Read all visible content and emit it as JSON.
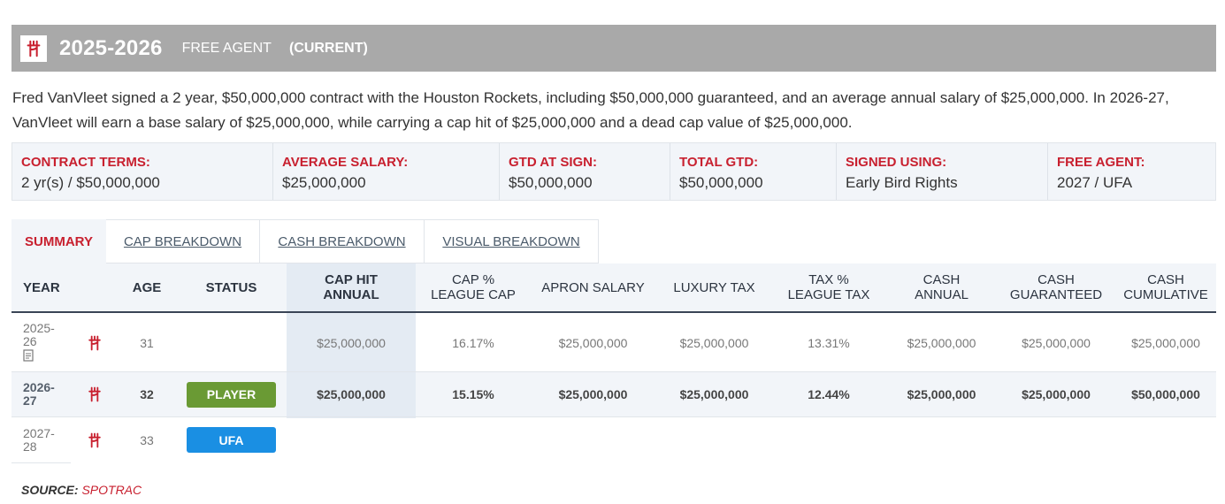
{
  "header": {
    "season": "2025-2026",
    "status": "FREE AGENT",
    "current": "(CURRENT)"
  },
  "description": "Fred VanVleet signed a 2 year, $50,000,000 contract with the Houston Rockets, including $50,000,000 guaranteed, and an average annual salary of $25,000,000. In 2026-27, VanVleet will earn a base salary of $25,000,000, while carrying a cap hit of $25,000,000 and a dead cap value of $25,000,000.",
  "terms": [
    {
      "label": "CONTRACT TERMS:",
      "value": "2 yr(s) / $50,000,000"
    },
    {
      "label": "AVERAGE SALARY:",
      "value": "$25,000,000"
    },
    {
      "label": "GTD AT SIGN:",
      "value": "$50,000,000"
    },
    {
      "label": "TOTAL GTD:",
      "value": "$50,000,000"
    },
    {
      "label": "SIGNED USING:",
      "value": "Early Bird Rights"
    },
    {
      "label": "FREE AGENT:",
      "value": "2027 / UFA"
    }
  ],
  "tabs": [
    "SUMMARY",
    "CAP BREAKDOWN",
    "CASH BREAKDOWN",
    "VISUAL BREAKDOWN"
  ],
  "table": {
    "headers": {
      "year": "YEAR",
      "age": "AGE",
      "status": "STATUS",
      "cap_hit_1": "CAP HIT",
      "cap_hit_2": "ANNUAL",
      "cap_pct_1": "CAP %",
      "cap_pct_2": "LEAGUE CAP",
      "apron": "APRON SALARY",
      "luxury": "LUXURY TAX",
      "tax_pct_1": "TAX %",
      "tax_pct_2": "LEAGUE TAX",
      "cash_annual_1": "CASH",
      "cash_annual_2": "ANNUAL",
      "cash_gtd_1": "CASH",
      "cash_gtd_2": "GUARANTEED",
      "cash_cum_1": "CASH",
      "cash_cum_2": "CUMULATIVE"
    },
    "rows": [
      {
        "year_1": "2025-",
        "year_2": "26",
        "age": "31",
        "status": "",
        "cap_hit": "$25,000,000",
        "cap_pct": "16.17%",
        "apron": "$25,000,000",
        "luxury": "$25,000,000",
        "tax_pct": "13.31%",
        "cash_annual": "$25,000,000",
        "cash_gtd": "$25,000,000",
        "cash_cum": "$25,000,000"
      },
      {
        "year_1": "2026-",
        "year_2": "27",
        "age": "32",
        "status": "PLAYER",
        "cap_hit": "$25,000,000",
        "cap_pct": "15.15%",
        "apron": "$25,000,000",
        "luxury": "$25,000,000",
        "tax_pct": "12.44%",
        "cash_annual": "$25,000,000",
        "cash_gtd": "$25,000,000",
        "cash_cum": "$50,000,000"
      },
      {
        "year_1": "2027-",
        "year_2": "28",
        "age": "33",
        "status": "UFA"
      }
    ]
  },
  "source": {
    "label": "SOURCE:",
    "value": "SPOTRAC"
  },
  "colors": {
    "accent_red": "#c8202f",
    "player_badge": "#6a9a34",
    "ufa_badge": "#1a8fe3",
    "header_band": "#a9a9a9"
  },
  "icons": {
    "team_logo": "rockets-logo-icon",
    "document": "document-icon"
  }
}
